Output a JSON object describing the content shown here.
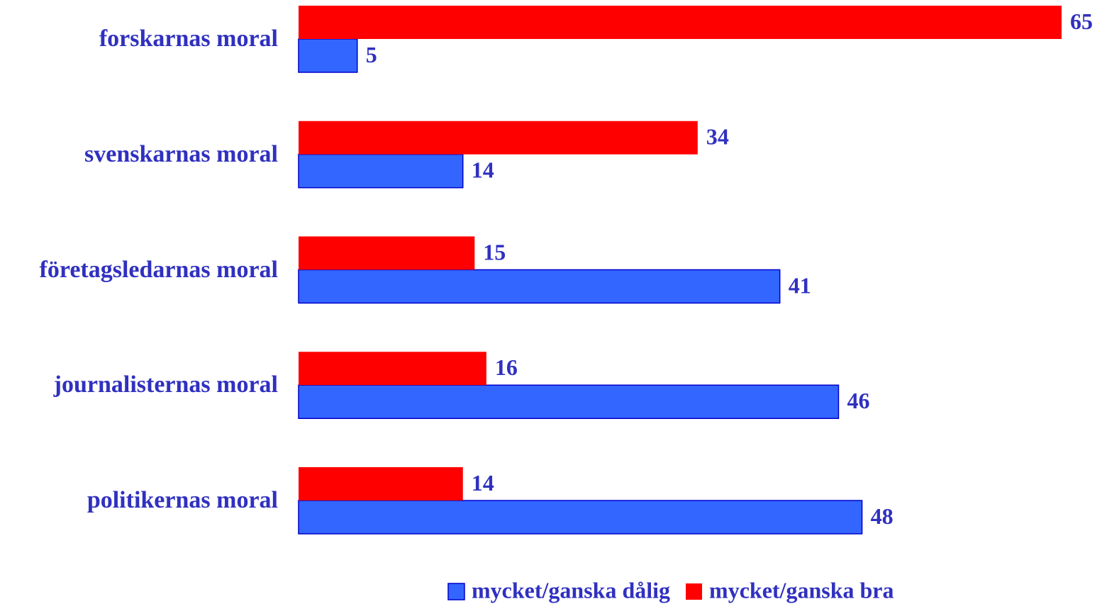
{
  "chart_data": {
    "type": "bar",
    "orientation": "horizontal",
    "categories": [
      "forskarnas moral",
      "svenskarnas moral",
      "företagsledarnas moral",
      "journalisternas moral",
      "politikernas moral"
    ],
    "series": [
      {
        "name": "mycket/ganska dålig",
        "color": "#3366ff",
        "values": [
          5,
          14,
          41,
          46,
          48
        ]
      },
      {
        "name": "mycket/ganska bra",
        "color": "#ff0000",
        "values": [
          65,
          34,
          15,
          16,
          14
        ]
      }
    ],
    "legend": "bottom"
  }
}
